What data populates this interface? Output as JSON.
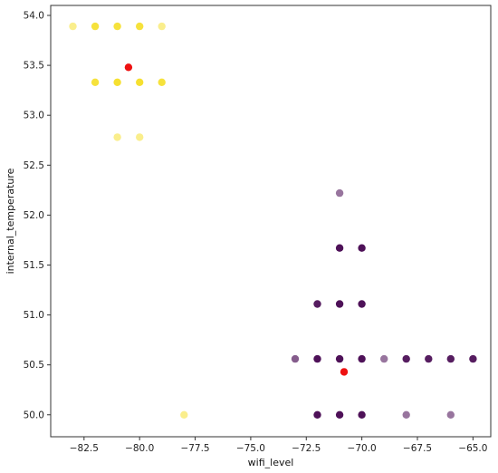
{
  "chart_data": {
    "type": "scatter",
    "title": "",
    "xlabel": "wifi_level",
    "ylabel": "internal_temperature",
    "xlim": [
      -84.0,
      -64.2
    ],
    "ylim": [
      49.78,
      54.1
    ],
    "x_ticks": [
      -82.5,
      -80.0,
      -77.5,
      -75.0,
      -72.5,
      -70.0,
      -67.5,
      -65.0
    ],
    "x_tick_labels": [
      "−82.5",
      "−80.0",
      "−77.5",
      "−75.0",
      "−72.5",
      "−70.0",
      "−67.5",
      "−65.0"
    ],
    "y_ticks": [
      50.0,
      50.5,
      51.0,
      51.5,
      52.0,
      52.5,
      53.0,
      53.5,
      54.0
    ],
    "y_tick_labels": [
      "50.0",
      "50.5",
      "51.0",
      "51.5",
      "52.0",
      "52.5",
      "53.0",
      "53.5",
      "54.0"
    ],
    "grid": false,
    "legend": "none",
    "colors": {
      "cluster_a": "#f5dd1a",
      "cluster_b": "#44044f",
      "centroid": "#ee1111",
      "axes": "#333333"
    },
    "series": [
      {
        "color": "#f5dd1a",
        "points": [
          {
            "x": -83,
            "y": 53.89,
            "alpha": 0.5
          },
          {
            "x": -82,
            "y": 53.89,
            "alpha": 0.85
          },
          {
            "x": -81,
            "y": 53.89,
            "alpha": 0.85
          },
          {
            "x": -80,
            "y": 53.89,
            "alpha": 0.85
          },
          {
            "x": -79,
            "y": 53.89,
            "alpha": 0.5
          },
          {
            "x": -82,
            "y": 53.33,
            "alpha": 0.85
          },
          {
            "x": -81,
            "y": 53.33,
            "alpha": 0.9
          },
          {
            "x": -80,
            "y": 53.33,
            "alpha": 0.9
          },
          {
            "x": -79,
            "y": 53.33,
            "alpha": 0.85
          },
          {
            "x": -81,
            "y": 52.78,
            "alpha": 0.5
          },
          {
            "x": -80,
            "y": 52.78,
            "alpha": 0.5
          },
          {
            "x": -78,
            "y": 50.0,
            "alpha": 0.5
          }
        ]
      },
      {
        "color": "#44044f",
        "points": [
          {
            "x": -71,
            "y": 52.22,
            "alpha": 0.55
          },
          {
            "x": -71,
            "y": 51.67,
            "alpha": 0.95
          },
          {
            "x": -70,
            "y": 51.67,
            "alpha": 0.95
          },
          {
            "x": -72,
            "y": 51.11,
            "alpha": 0.9
          },
          {
            "x": -71,
            "y": 51.11,
            "alpha": 0.95
          },
          {
            "x": -70,
            "y": 51.11,
            "alpha": 0.95
          },
          {
            "x": -73,
            "y": 50.56,
            "alpha": 0.65
          },
          {
            "x": -72,
            "y": 50.56,
            "alpha": 0.95
          },
          {
            "x": -71,
            "y": 50.56,
            "alpha": 0.95
          },
          {
            "x": -70,
            "y": 50.56,
            "alpha": 0.95
          },
          {
            "x": -69,
            "y": 50.56,
            "alpha": 0.55
          },
          {
            "x": -68,
            "y": 50.56,
            "alpha": 0.9
          },
          {
            "x": -67,
            "y": 50.56,
            "alpha": 0.9
          },
          {
            "x": -66,
            "y": 50.56,
            "alpha": 0.9
          },
          {
            "x": -65,
            "y": 50.56,
            "alpha": 0.9
          },
          {
            "x": -72,
            "y": 50.0,
            "alpha": 0.95
          },
          {
            "x": -71,
            "y": 50.0,
            "alpha": 0.95
          },
          {
            "x": -70,
            "y": 50.0,
            "alpha": 0.95
          },
          {
            "x": -68,
            "y": 50.0,
            "alpha": 0.55
          },
          {
            "x": -66,
            "y": 50.0,
            "alpha": 0.55
          }
        ]
      },
      {
        "color": "#ee1111",
        "points": [
          {
            "x": -80.5,
            "y": 53.48,
            "alpha": 1.0
          },
          {
            "x": -70.8,
            "y": 50.43,
            "alpha": 1.0
          }
        ]
      }
    ]
  }
}
